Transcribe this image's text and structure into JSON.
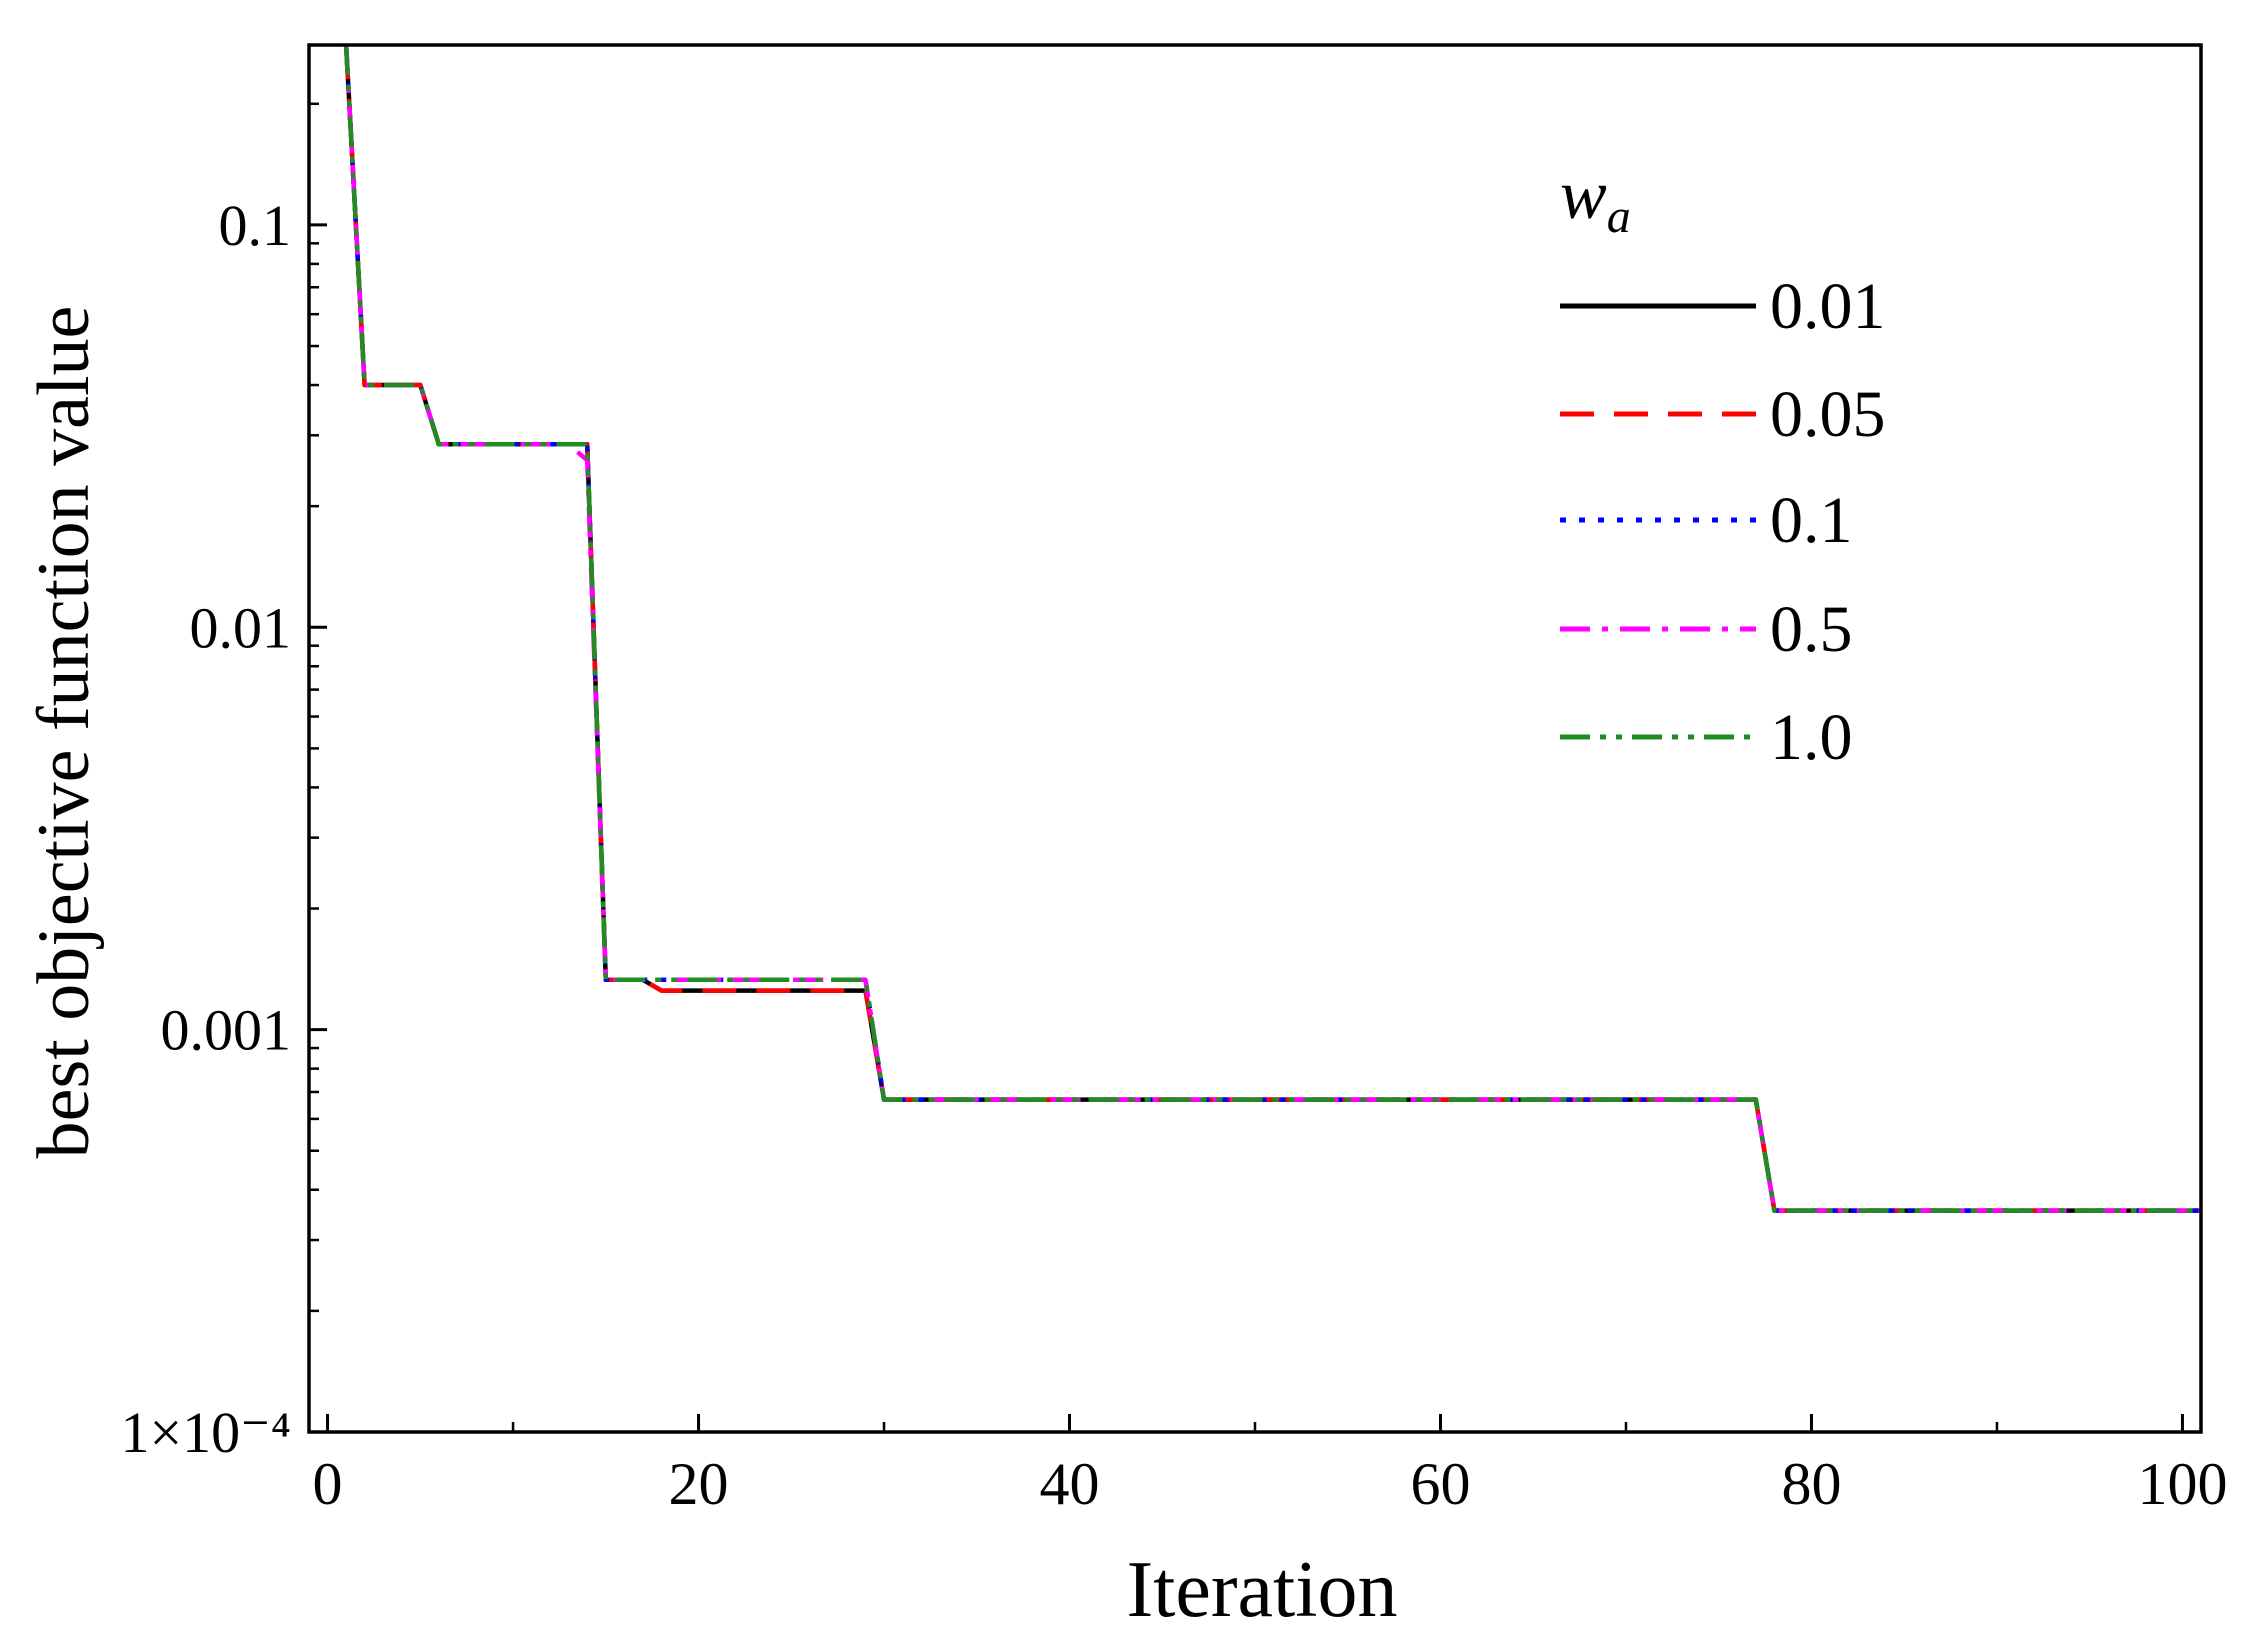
{
  "chart_data": {
    "type": "line",
    "title": "",
    "xlabel": "Iteration",
    "ylabel": "best objective function value",
    "xlim": [
      -1,
      101
    ],
    "ylim": [
      0.0001,
      0.28
    ],
    "yscale": "log",
    "xticks": [
      0,
      20,
      40,
      60,
      80,
      100
    ],
    "xtick_labels": [
      "0",
      "20",
      "40",
      "60",
      "80",
      "100"
    ],
    "yticks": [
      0.0001,
      0.001,
      0.01,
      0.1
    ],
    "ytick_labels": [
      "1×10⁻⁴",
      "0.001",
      "0.01",
      "0.1"
    ],
    "legend_title": "w",
    "legend_title_sub": "a",
    "legend_position": "top-right",
    "grid": false,
    "series": [
      {
        "name": "0.01",
        "color": "#000000",
        "dash": "solid",
        "points": [
          [
            1,
            0.28
          ],
          [
            2,
            0.04
          ],
          [
            5,
            0.04
          ],
          [
            6,
            0.0285
          ],
          [
            14,
            0.0285
          ],
          [
            15,
            0.00133
          ],
          [
            17,
            0.00133
          ],
          [
            18,
            0.00125
          ],
          [
            29,
            0.00125
          ],
          [
            30,
            0.00067
          ],
          [
            77,
            0.00067
          ],
          [
            78,
            0.000355
          ],
          [
            101,
            0.000355
          ]
        ]
      },
      {
        "name": "0.05",
        "color": "#ff0000",
        "dash": "dashed",
        "points": [
          [
            1,
            0.28
          ],
          [
            2,
            0.04
          ],
          [
            5,
            0.04
          ],
          [
            6,
            0.0285
          ],
          [
            14,
            0.0285
          ],
          [
            15,
            0.00133
          ],
          [
            17,
            0.00133
          ],
          [
            18,
            0.00125
          ],
          [
            29,
            0.00125
          ],
          [
            30,
            0.00067
          ],
          [
            77,
            0.00067
          ],
          [
            78,
            0.000355
          ],
          [
            101,
            0.000355
          ]
        ]
      },
      {
        "name": "0.1",
        "color": "#0000ff",
        "dash": "dotted",
        "points": [
          [
            1,
            0.28
          ],
          [
            2,
            0.04
          ],
          [
            5,
            0.04
          ],
          [
            6,
            0.0285
          ],
          [
            14,
            0.0285
          ],
          [
            15,
            0.00133
          ],
          [
            29,
            0.00133
          ],
          [
            30,
            0.00067
          ],
          [
            77,
            0.00067
          ],
          [
            78,
            0.000355
          ],
          [
            101,
            0.000355
          ]
        ]
      },
      {
        "name": "0.5",
        "color": "#ff00ff",
        "dash": "dashdot",
        "points": [
          [
            1,
            0.28
          ],
          [
            2,
            0.04
          ],
          [
            5,
            0.04
          ],
          [
            6,
            0.0285
          ],
          [
            13,
            0.0285
          ],
          [
            14,
            0.026
          ],
          [
            15,
            0.00133
          ],
          [
            29,
            0.00133
          ],
          [
            30,
            0.00067
          ],
          [
            77,
            0.00067
          ],
          [
            78,
            0.000355
          ],
          [
            101,
            0.000355
          ]
        ]
      },
      {
        "name": "1.0",
        "color": "#228b22",
        "dash": "dashdotdot",
        "points": [
          [
            1,
            0.28
          ],
          [
            2,
            0.04
          ],
          [
            5,
            0.04
          ],
          [
            6,
            0.0285
          ],
          [
            14,
            0.0285
          ],
          [
            15,
            0.00133
          ],
          [
            29,
            0.00133
          ],
          [
            30,
            0.00067
          ],
          [
            77,
            0.00067
          ],
          [
            78,
            0.000355
          ],
          [
            101,
            0.000355
          ]
        ]
      }
    ]
  }
}
